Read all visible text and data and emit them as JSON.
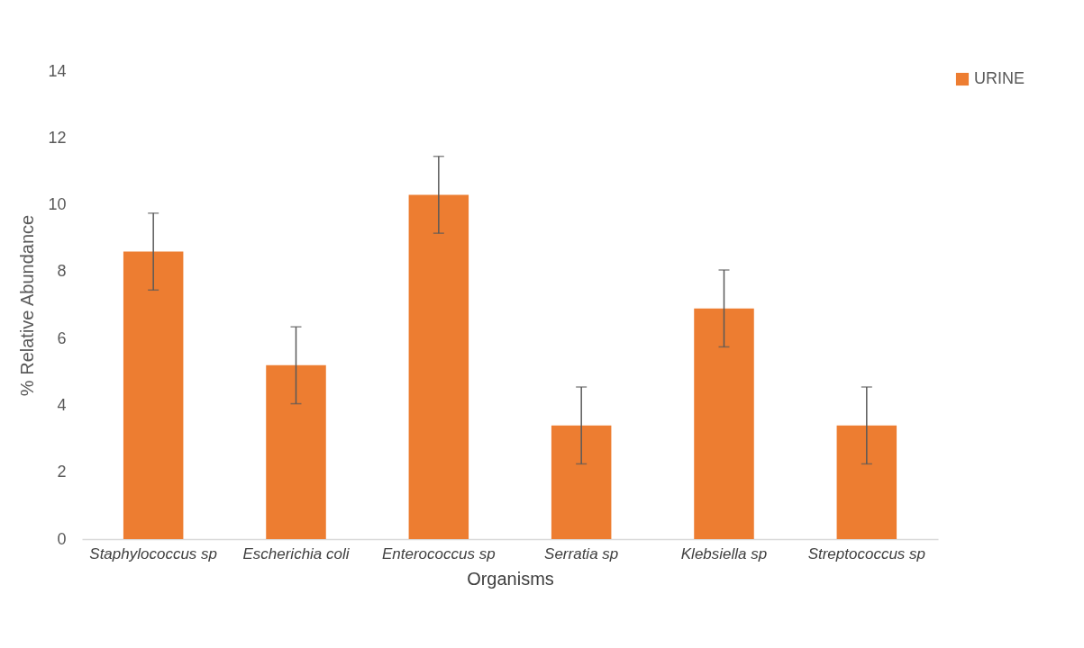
{
  "chart_data": {
    "type": "bar",
    "xlabel": "Organisms",
    "ylabel": "% Relative Abundance",
    "categories": [
      "Staphylococcus sp",
      "Escherichia coli",
      "Enterococcus sp",
      "Serratia sp",
      "Klebsiella sp",
      "Streptococcus sp"
    ],
    "series": [
      {
        "name": "URINE",
        "color": "#ed7d31",
        "values": [
          8.6,
          5.2,
          10.3,
          3.4,
          6.9,
          3.4
        ],
        "errors": [
          1.15,
          1.15,
          1.15,
          1.15,
          1.15,
          1.15
        ]
      }
    ],
    "ylim": [
      0,
      14
    ],
    "yticks": [
      0,
      2,
      4,
      6,
      8,
      10,
      12,
      14
    ],
    "grid": false,
    "legend": "right"
  }
}
